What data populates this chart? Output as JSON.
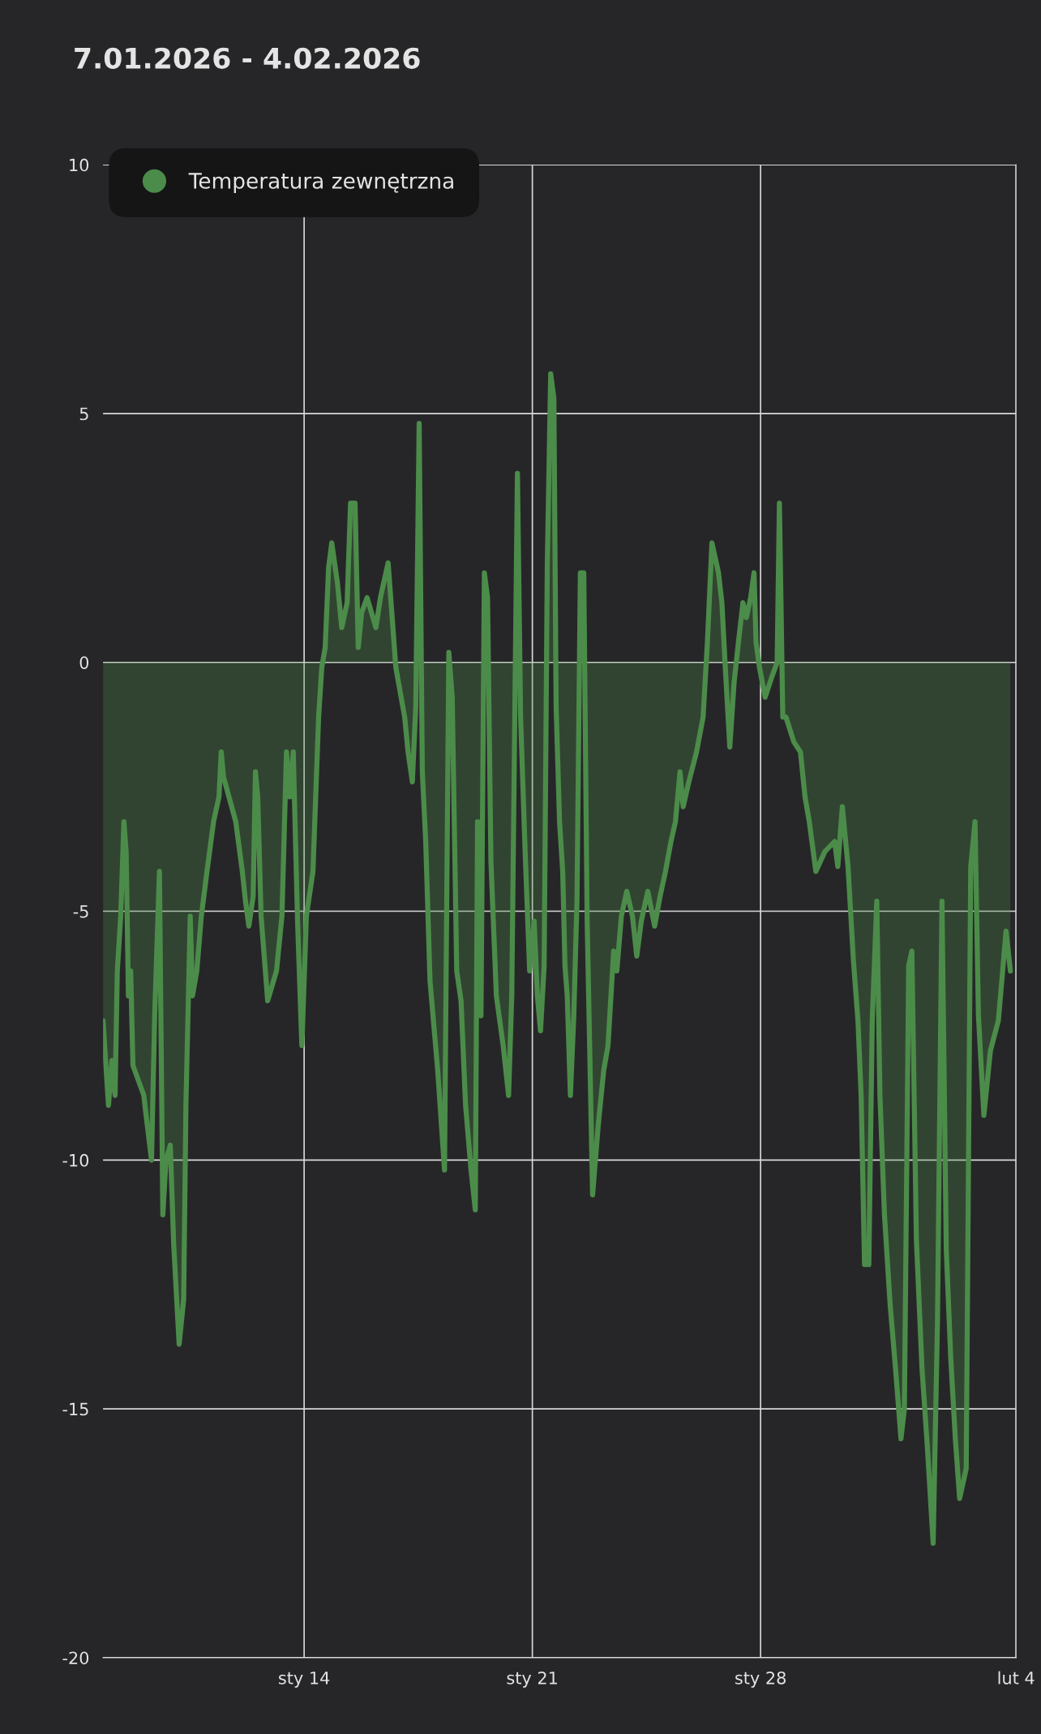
{
  "chart_data": {
    "type": "area",
    "title": "7.01.2026 - 4.02.2026",
    "x": [
      "2026-01-07T20:00",
      "2026-01-07T22:20",
      "2026-01-08T00:00",
      "2026-01-08T02:30",
      "2026-01-08T04:50",
      "2026-01-08T06:30",
      "2026-01-08T09:00",
      "2026-01-08T11:20",
      "2026-01-08T13:00",
      "2026-01-08T14:40",
      "2026-01-08T16:20",
      "2026-01-08T18:00",
      "2026-01-09T02:00",
      "2026-01-09T03:40",
      "2026-01-09T07:40",
      "2026-01-09T10:00",
      "2026-01-09T13:30",
      "2026-01-09T16:00",
      "2026-01-09T18:20",
      "2026-01-09T21:30",
      "2026-01-10T00:00",
      "2026-01-10T04:00",
      "2026-01-10T07:20",
      "2026-01-10T09:00",
      "2026-01-10T12:10",
      "2026-01-10T13:50",
      "2026-01-10T17:00",
      "2026-01-10T20:20",
      "2026-01-11T00:30",
      "2026-01-11T05:20",
      "2026-01-11T09:20",
      "2026-01-11T11:00",
      "2026-01-11T12:40",
      "2026-01-11T21:40",
      "2026-01-12T02:30",
      "2026-01-12T04:50",
      "2026-01-12T07:20",
      "2026-01-12T10:30",
      "2026-01-12T12:10",
      "2026-01-12T13:50",
      "2026-01-12T16:20",
      "2026-01-12T21:10",
      "2026-01-13T03:40",
      "2026-01-13T07:40",
      "2026-01-13T11:00",
      "2026-01-13T13:30",
      "2026-01-13T16:00",
      "2026-01-13T19:10",
      "2026-01-13T22:20",
      "2026-01-14T01:40",
      "2026-01-14T06:30",
      "2026-01-14T10:40",
      "2026-01-14T13:00",
      "2026-01-14T15:30",
      "2026-01-14T18:00",
      "2026-01-14T20:20",
      "2026-01-15T00:30",
      "2026-01-15T03:40",
      "2026-01-15T07:40",
      "2026-01-15T10:10",
      "2026-01-15T13:30",
      "2026-01-15T15:50",
      "2026-01-15T18:20",
      "2026-01-15T22:20",
      "2026-01-16T04:50",
      "2026-01-16T08:10",
      "2026-01-16T13:50",
      "2026-01-16T19:30",
      "2026-01-17T02:00",
      "2026-01-17T04:30",
      "2026-01-17T07:40",
      "2026-01-17T10:10",
      "2026-01-17T12:40",
      "2026-01-17T15:00",
      "2026-01-17T17:30",
      "2026-01-17T20:40",
      "2026-01-18T02:20",
      "2026-01-18T07:20",
      "2026-01-18T10:30",
      "2026-01-18T13:00",
      "2026-01-18T16:20",
      "2026-01-18T19:30",
      "2026-01-18T22:50",
      "2026-01-19T02:50",
      "2026-01-19T06:00",
      "2026-01-19T07:40",
      "2026-01-19T10:10",
      "2026-01-19T12:40",
      "2026-01-19T15:00",
      "2026-01-19T17:30",
      "2026-01-19T21:30",
      "2026-01-20T02:30",
      "2026-01-20T06:30",
      "2026-01-20T08:50",
      "2026-01-20T13:00",
      "2026-01-20T15:20",
      "2026-01-20T18:40",
      "2026-01-20T22:00",
      "2026-01-21T01:20",
      "2026-01-21T03:40",
      "2026-01-21T06:00",
      "2026-01-21T08:40",
      "2026-01-21T11:00",
      "2026-01-21T13:30",
      "2026-01-21T15:50",
      "2026-01-21T17:30",
      "2026-01-21T20:00",
      "2026-01-21T22:20",
      "2026-01-22T00:00",
      "2026-01-22T01:40",
      "2026-01-22T04:00",
      "2026-01-22T06:30",
      "2026-01-22T08:50",
      "2026-01-22T11:20",
      "2026-01-22T13:50",
      "2026-01-22T16:20",
      "2026-01-22T20:20",
      "2026-01-23T00:30",
      "2026-01-23T04:30",
      "2026-01-23T07:40",
      "2026-01-23T11:50",
      "2026-01-23T14:10",
      "2026-01-23T17:30",
      "2026-01-23T21:30",
      "2026-01-24T01:40",
      "2026-01-24T04:50",
      "2026-01-24T08:10",
      "2026-01-24T13:00",
      "2026-01-24T18:00",
      "2026-01-24T22:00",
      "2026-01-25T02:00",
      "2026-01-25T06:00",
      "2026-01-25T09:20",
      "2026-01-25T12:40",
      "2026-01-25T15:00",
      "2026-01-25T19:10",
      "2026-01-26T00:50",
      "2026-01-26T05:40",
      "2026-01-26T08:50",
      "2026-01-26T12:10",
      "2026-01-26T17:00",
      "2026-01-26T19:30",
      "2026-01-26T22:00",
      "2026-01-27T01:20",
      "2026-01-27T04:30",
      "2026-01-27T07:40",
      "2026-01-27T11:00",
      "2026-01-27T13:30",
      "2026-01-27T16:40",
      "2026-01-27T19:10",
      "2026-01-27T20:40",
      "2026-01-27T23:10",
      "2026-01-28T03:20",
      "2026-01-28T08:10",
      "2026-01-28T12:10",
      "2026-01-28T13:50",
      "2026-01-28T16:20",
      "2026-01-28T18:40",
      "2026-01-29T00:30",
      "2026-01-29T05:20",
      "2026-01-29T08:40",
      "2026-01-29T11:50",
      "2026-01-29T16:40",
      "2026-01-29T23:20",
      "2026-01-30T06:30",
      "2026-01-30T08:50",
      "2026-01-30T12:10",
      "2026-01-30T16:20",
      "2026-01-30T20:20",
      "2026-01-30T23:40",
      "2026-01-31T02:00",
      "2026-01-31T04:30",
      "2026-01-31T07:40",
      "2026-01-31T10:10",
      "2026-01-31T13:30",
      "2026-01-31T15:50",
      "2026-01-31T19:10",
      "2026-01-31T23:20",
      "2026-02-01T03:20",
      "2026-02-01T07:20",
      "2026-02-01T09:50",
      "2026-02-01T13:00",
      "2026-02-01T15:20",
      "2026-02-01T18:40",
      "2026-02-01T22:50",
      "2026-02-02T02:50",
      "2026-02-02T07:00",
      "2026-02-02T10:10",
      "2026-02-02T13:30",
      "2026-02-02T16:40",
      "2026-02-02T20:00",
      "2026-02-02T23:20",
      "2026-02-03T02:30",
      "2026-02-03T07:20",
      "2026-02-03T10:40",
      "2026-02-03T13:50",
      "2026-02-03T16:20",
      "2026-02-03T20:20",
      "2026-02-04T01:10",
      "2026-02-04T07:00",
      "2026-02-04T10:10",
      "2026-02-04T12:40",
      "2026-02-04T15:50"
    ],
    "series": [
      {
        "name": "Temperatura zewnętrzna",
        "color": "#4c8c4a",
        "values": [
          -7.2,
          -8.2,
          -8.9,
          -8.0,
          -8.7,
          -6.2,
          -5.1,
          -3.2,
          -3.8,
          -6.7,
          -6.2,
          -8.1,
          -8.7,
          -9.1,
          -10.0,
          -7.1,
          -4.2,
          -11.1,
          -10.0,
          -9.7,
          -11.7,
          -13.7,
          -12.8,
          -8.9,
          -5.1,
          -6.7,
          -6.2,
          -5.1,
          -4.2,
          -3.2,
          -2.7,
          -1.8,
          -2.3,
          -3.2,
          -4.2,
          -4.8,
          -5.3,
          -4.7,
          -2.2,
          -2.7,
          -5.1,
          -6.8,
          -6.2,
          -5.1,
          -1.8,
          -2.7,
          -1.8,
          -5.2,
          -7.7,
          -5.1,
          -4.2,
          -1.1,
          -0.1,
          0.3,
          1.9,
          2.4,
          1.6,
          0.7,
          1.2,
          3.2,
          3.2,
          0.3,
          1.0,
          1.3,
          0.7,
          1.3,
          2.0,
          -0.1,
          -1.1,
          -1.8,
          -2.4,
          -0.9,
          4.8,
          -2.2,
          -3.6,
          -6.4,
          -8.2,
          -10.2,
          0.2,
          -0.7,
          -6.2,
          -6.8,
          -8.9,
          -10.2,
          -11.0,
          -3.2,
          -7.1,
          1.8,
          1.3,
          -4.0,
          -6.7,
          -7.7,
          -8.7,
          -6.7,
          3.8,
          -1.1,
          -3.8,
          -6.2,
          -5.2,
          -6.7,
          -7.4,
          -6.1,
          2.0,
          5.8,
          5.3,
          -0.9,
          -3.2,
          -4.2,
          -6.1,
          -6.7,
          -8.7,
          -7.1,
          -4.8,
          1.8,
          1.8,
          -5.2,
          -10.7,
          -9.3,
          -8.2,
          -7.7,
          -5.8,
          -6.2,
          -5.1,
          -4.6,
          -5.1,
          -5.9,
          -5.2,
          -4.6,
          -5.3,
          -4.7,
          -4.2,
          -3.6,
          -3.2,
          -2.2,
          -2.9,
          -2.4,
          -1.8,
          -1.1,
          0.4,
          2.4,
          1.8,
          1.2,
          -0.1,
          -1.7,
          -0.4,
          0.4,
          1.2,
          0.9,
          1.3,
          1.8,
          0.4,
          -0.1,
          -0.7,
          -0.3,
          0.0,
          3.2,
          -1.1,
          -1.1,
          -1.6,
          -1.8,
          -2.7,
          -3.2,
          -4.2,
          -3.8,
          -3.6,
          -4.1,
          -2.9,
          -4.1,
          -6.0,
          -7.2,
          -8.7,
          -12.1,
          -12.1,
          -7.2,
          -4.8,
          -8.7,
          -11.1,
          -12.9,
          -14.2,
          -15.6,
          -15.0,
          -6.1,
          -5.8,
          -11.6,
          -14.2,
          -15.8,
          -17.7,
          -13.3,
          -4.8,
          -11.8,
          -14.0,
          -15.6,
          -16.8,
          -16.2,
          -4.1,
          -3.2,
          -7.1,
          -9.1,
          -7.8,
          -7.2,
          -6.2,
          -5.4,
          -6.2
        ]
      }
    ],
    "xlim": [
      "2026-01-07T20:00",
      "2026-02-04T20:00"
    ],
    "xticks": [
      {
        "value": "2026-01-14",
        "label": "sty 14"
      },
      {
        "value": "2026-01-21",
        "label": "sty 21"
      },
      {
        "value": "2026-01-28",
        "label": "sty 28"
      },
      {
        "value": "2026-02-04T20:00",
        "label": "lut 4"
      }
    ],
    "ylim": [
      -20,
      10
    ],
    "yticks": [
      10,
      5,
      0,
      -5,
      -10,
      -15,
      -20
    ],
    "grid": true,
    "legend": "top left",
    "marker": "none",
    "line_style": "solid"
  }
}
